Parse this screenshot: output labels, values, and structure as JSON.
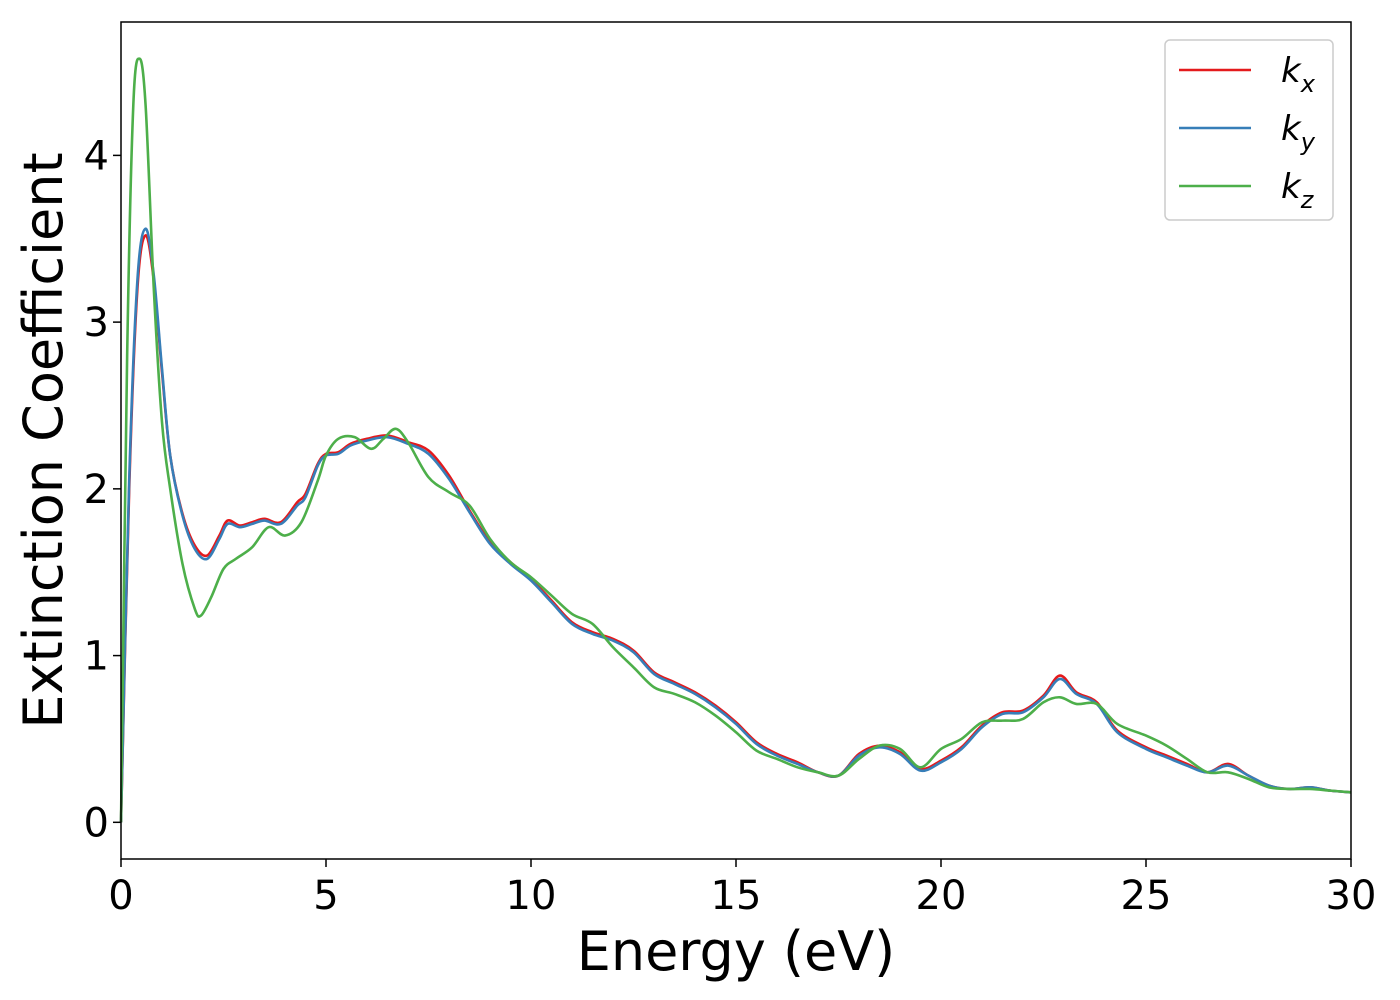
{
  "chart_data": {
    "type": "line",
    "xlabel": "Energy (eV)",
    "ylabel": "Extinction Coefficient",
    "xlim": [
      0,
      30
    ],
    "ylim": [
      -0.22,
      4.8
    ],
    "xticks": [
      0,
      5,
      10,
      15,
      20,
      25,
      30
    ],
    "xtick_labels": [
      "0",
      "5",
      "10",
      "15",
      "20",
      "25",
      "30"
    ],
    "yticks": [
      0,
      1,
      2,
      3,
      4
    ],
    "ytick_labels": [
      "0",
      "1",
      "2",
      "3",
      "4"
    ],
    "grid": false,
    "legend_position": "top-right",
    "series": [
      {
        "name": "k_x",
        "legend_main": "k",
        "legend_sub": "x",
        "color": "#e41a1c",
        "points": [
          [
            0,
            0
          ],
          [
            0.2,
            2.0
          ],
          [
            0.4,
            3.2
          ],
          [
            0.6,
            3.52
          ],
          [
            0.8,
            3.25
          ],
          [
            1.0,
            2.7
          ],
          [
            1.2,
            2.2
          ],
          [
            1.5,
            1.85
          ],
          [
            1.8,
            1.66
          ],
          [
            2.1,
            1.6
          ],
          [
            2.4,
            1.72
          ],
          [
            2.6,
            1.81
          ],
          [
            2.9,
            1.78
          ],
          [
            3.2,
            1.8
          ],
          [
            3.5,
            1.82
          ],
          [
            3.9,
            1.8
          ],
          [
            4.3,
            1.92
          ],
          [
            4.5,
            1.97
          ],
          [
            4.8,
            2.15
          ],
          [
            5.0,
            2.21
          ],
          [
            5.3,
            2.22
          ],
          [
            5.6,
            2.27
          ],
          [
            6.0,
            2.3
          ],
          [
            6.5,
            2.32
          ],
          [
            7.0,
            2.28
          ],
          [
            7.5,
            2.23
          ],
          [
            8.0,
            2.08
          ],
          [
            8.5,
            1.87
          ],
          [
            9.0,
            1.68
          ],
          [
            9.5,
            1.56
          ],
          [
            10.0,
            1.46
          ],
          [
            10.5,
            1.33
          ],
          [
            11.0,
            1.2
          ],
          [
            11.5,
            1.14
          ],
          [
            12.0,
            1.1
          ],
          [
            12.5,
            1.03
          ],
          [
            13.0,
            0.9
          ],
          [
            13.5,
            0.84
          ],
          [
            14.0,
            0.78
          ],
          [
            14.5,
            0.7
          ],
          [
            15.0,
            0.6
          ],
          [
            15.5,
            0.48
          ],
          [
            16.0,
            0.41
          ],
          [
            16.5,
            0.36
          ],
          [
            17.0,
            0.3
          ],
          [
            17.5,
            0.28
          ],
          [
            18.0,
            0.41
          ],
          [
            18.5,
            0.46
          ],
          [
            19.0,
            0.42
          ],
          [
            19.5,
            0.32
          ],
          [
            20.0,
            0.37
          ],
          [
            20.5,
            0.45
          ],
          [
            21.0,
            0.58
          ],
          [
            21.5,
            0.66
          ],
          [
            22.0,
            0.67
          ],
          [
            22.5,
            0.76
          ],
          [
            22.9,
            0.88
          ],
          [
            23.3,
            0.78
          ],
          [
            23.8,
            0.72
          ],
          [
            24.3,
            0.55
          ],
          [
            25.0,
            0.45
          ],
          [
            25.5,
            0.4
          ],
          [
            26.0,
            0.35
          ],
          [
            26.5,
            0.3
          ],
          [
            27.0,
            0.35
          ],
          [
            27.5,
            0.28
          ],
          [
            28.0,
            0.22
          ],
          [
            28.5,
            0.2
          ],
          [
            29.0,
            0.21
          ],
          [
            29.5,
            0.19
          ],
          [
            30.0,
            0.18
          ]
        ]
      },
      {
        "name": "k_y",
        "legend_main": "k",
        "legend_sub": "y",
        "color": "#377eb8",
        "points": [
          [
            0,
            0
          ],
          [
            0.2,
            2.05
          ],
          [
            0.4,
            3.25
          ],
          [
            0.6,
            3.56
          ],
          [
            0.8,
            3.28
          ],
          [
            1.0,
            2.72
          ],
          [
            1.2,
            2.2
          ],
          [
            1.5,
            1.84
          ],
          [
            1.8,
            1.64
          ],
          [
            2.1,
            1.58
          ],
          [
            2.4,
            1.7
          ],
          [
            2.6,
            1.79
          ],
          [
            2.9,
            1.77
          ],
          [
            3.2,
            1.79
          ],
          [
            3.5,
            1.81
          ],
          [
            3.9,
            1.79
          ],
          [
            4.3,
            1.9
          ],
          [
            4.5,
            1.95
          ],
          [
            4.8,
            2.14
          ],
          [
            5.0,
            2.2
          ],
          [
            5.3,
            2.21
          ],
          [
            5.6,
            2.26
          ],
          [
            6.0,
            2.29
          ],
          [
            6.5,
            2.31
          ],
          [
            7.0,
            2.27
          ],
          [
            7.5,
            2.21
          ],
          [
            8.0,
            2.06
          ],
          [
            8.5,
            1.86
          ],
          [
            9.0,
            1.67
          ],
          [
            9.5,
            1.55
          ],
          [
            10.0,
            1.45
          ],
          [
            10.5,
            1.32
          ],
          [
            11.0,
            1.19
          ],
          [
            11.5,
            1.13
          ],
          [
            12.0,
            1.09
          ],
          [
            12.5,
            1.02
          ],
          [
            13.0,
            0.89
          ],
          [
            13.5,
            0.83
          ],
          [
            14.0,
            0.77
          ],
          [
            14.5,
            0.69
          ],
          [
            15.0,
            0.59
          ],
          [
            15.5,
            0.47
          ],
          [
            16.0,
            0.4
          ],
          [
            16.5,
            0.35
          ],
          [
            17.0,
            0.3
          ],
          [
            17.5,
            0.28
          ],
          [
            18.0,
            0.4
          ],
          [
            18.5,
            0.45
          ],
          [
            19.0,
            0.41
          ],
          [
            19.5,
            0.31
          ],
          [
            20.0,
            0.36
          ],
          [
            20.5,
            0.44
          ],
          [
            21.0,
            0.57
          ],
          [
            21.5,
            0.65
          ],
          [
            22.0,
            0.66
          ],
          [
            22.5,
            0.75
          ],
          [
            22.9,
            0.86
          ],
          [
            23.3,
            0.77
          ],
          [
            23.8,
            0.71
          ],
          [
            24.3,
            0.54
          ],
          [
            25.0,
            0.44
          ],
          [
            25.5,
            0.39
          ],
          [
            26.0,
            0.34
          ],
          [
            26.5,
            0.3
          ],
          [
            27.0,
            0.34
          ],
          [
            27.5,
            0.28
          ],
          [
            28.0,
            0.22
          ],
          [
            28.5,
            0.2
          ],
          [
            29.0,
            0.21
          ],
          [
            29.5,
            0.19
          ],
          [
            30.0,
            0.18
          ]
        ]
      },
      {
        "name": "k_z",
        "legend_main": "k",
        "legend_sub": "z",
        "color": "#4daf4a",
        "points": [
          [
            0,
            0
          ],
          [
            0.15,
            2.8
          ],
          [
            0.3,
            4.3
          ],
          [
            0.45,
            4.58
          ],
          [
            0.6,
            4.3
          ],
          [
            0.8,
            3.2
          ],
          [
            1.0,
            2.4
          ],
          [
            1.2,
            2.0
          ],
          [
            1.5,
            1.55
          ],
          [
            1.8,
            1.28
          ],
          [
            1.95,
            1.24
          ],
          [
            2.2,
            1.35
          ],
          [
            2.5,
            1.52
          ],
          [
            2.8,
            1.58
          ],
          [
            3.2,
            1.65
          ],
          [
            3.6,
            1.77
          ],
          [
            4.0,
            1.72
          ],
          [
            4.4,
            1.8
          ],
          [
            4.8,
            2.05
          ],
          [
            5.0,
            2.2
          ],
          [
            5.3,
            2.3
          ],
          [
            5.7,
            2.31
          ],
          [
            6.1,
            2.24
          ],
          [
            6.4,
            2.3
          ],
          [
            6.7,
            2.36
          ],
          [
            7.0,
            2.28
          ],
          [
            7.5,
            2.07
          ],
          [
            8.0,
            1.98
          ],
          [
            8.5,
            1.9
          ],
          [
            9.0,
            1.7
          ],
          [
            9.5,
            1.56
          ],
          [
            10.0,
            1.47
          ],
          [
            10.5,
            1.36
          ],
          [
            11.0,
            1.25
          ],
          [
            11.5,
            1.19
          ],
          [
            12.0,
            1.05
          ],
          [
            12.5,
            0.93
          ],
          [
            13.0,
            0.81
          ],
          [
            13.5,
            0.77
          ],
          [
            14.0,
            0.72
          ],
          [
            14.5,
            0.64
          ],
          [
            15.0,
            0.54
          ],
          [
            15.5,
            0.43
          ],
          [
            16.0,
            0.38
          ],
          [
            16.5,
            0.33
          ],
          [
            17.0,
            0.3
          ],
          [
            17.5,
            0.28
          ],
          [
            18.0,
            0.38
          ],
          [
            18.5,
            0.46
          ],
          [
            19.0,
            0.44
          ],
          [
            19.5,
            0.33
          ],
          [
            20.0,
            0.44
          ],
          [
            20.5,
            0.5
          ],
          [
            21.0,
            0.6
          ],
          [
            21.5,
            0.61
          ],
          [
            22.0,
            0.62
          ],
          [
            22.5,
            0.72
          ],
          [
            22.9,
            0.75
          ],
          [
            23.3,
            0.71
          ],
          [
            23.8,
            0.71
          ],
          [
            24.3,
            0.59
          ],
          [
            25.0,
            0.52
          ],
          [
            25.5,
            0.46
          ],
          [
            26.0,
            0.38
          ],
          [
            26.5,
            0.3
          ],
          [
            27.0,
            0.3
          ],
          [
            27.5,
            0.26
          ],
          [
            28.0,
            0.21
          ],
          [
            28.5,
            0.2
          ],
          [
            29.0,
            0.2
          ],
          [
            29.5,
            0.19
          ],
          [
            30.0,
            0.18
          ]
        ]
      }
    ]
  }
}
